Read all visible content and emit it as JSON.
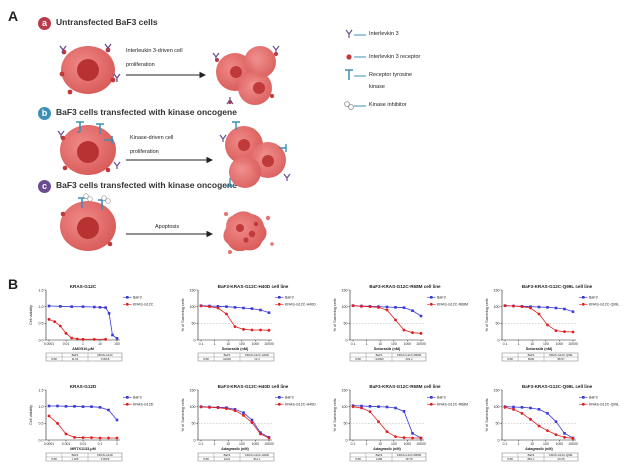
{
  "panel_a": {
    "letter": "A",
    "rows": [
      {
        "badge": "a",
        "badge_color": "#b83a4b",
        "title": "Untransfected BaF3 cells",
        "arrow_label_1": "Interleukin 3-driven cell",
        "arrow_label_2": "proliferation"
      },
      {
        "badge": "b",
        "badge_color": "#3d8fb5",
        "title": "BaF3 cells transfected with kinase oncogene",
        "arrow_label_1": "Kinase-driven cell",
        "arrow_label_2": "proliferation"
      },
      {
        "badge": "c",
        "badge_color": "#6a4c93",
        "title": "BaF3 cells transfected with kinase oncogene",
        "arrow_label_1": "Apoptosis",
        "arrow_label_2": ""
      }
    ],
    "legend": [
      {
        "label": "Interlevkin 3",
        "icon": "interleukin-3-icon"
      },
      {
        "label": "Interlevkin 3 receptor",
        "icon": "receptor-icon"
      },
      {
        "label": "Receptor tyrosine",
        "label2": "kinase",
        "icon": "tyrosine-kinase-icon"
      },
      {
        "label": "Kinase inhibitor",
        "icon": "kinase-inhibitor-icon"
      }
    ],
    "colors": {
      "cell": "#e8706e",
      "nucleus": "#c03a3a",
      "arrow": "#222222"
    }
  },
  "panel_b": {
    "letter": "B",
    "colors": {
      "series1": "#3a3ad8",
      "series2": "#e02020"
    },
    "chart_data": [
      {
        "type": "line",
        "title": "KRAS-G12C",
        "xlabel": "AMG510,μM",
        "ylabel": "Cell viability",
        "xticks": [
          "0.0001",
          "0.01",
          "1",
          "10",
          "100"
        ],
        "yticks": [
          "0.0",
          "0.5",
          "1.0",
          "1.5"
        ],
        "ylim": [
          0,
          1.5
        ],
        "series": [
          {
            "name": "BaF3",
            "x": [
              -4,
              -3,
              -2,
              -1,
              0,
              0.5,
              1,
              1.3,
              1.6,
              2
            ],
            "y": [
              1.02,
              1.01,
              1.0,
              1.0,
              0.99,
              0.98,
              0.97,
              0.8,
              0.15,
              0.05
            ]
          },
          {
            "name": "KRAS-G12C",
            "x": [
              -4,
              -3.5,
              -3,
              -2.5,
              -2,
              -1.5,
              -1,
              0,
              1
            ],
            "y": [
              0.62,
              0.55,
              0.42,
              0.2,
              0.06,
              0.03,
              0.02,
              0.02,
              0.02
            ]
          }
        ],
        "table": {
          "header": [
            "",
            "BaF3",
            "KRAS-G12C"
          ],
          "row": [
            "IC50",
            "11.61",
            "0.0018"
          ]
        }
      },
      {
        "type": "line",
        "title": "BaF3-KRAS-G12C-H40D cell line",
        "xlabel": "Sotorasib (nM)",
        "ylabel": "% of Surviving cells",
        "xticks": [
          "0.1",
          "1",
          "10",
          "100",
          "1000",
          "10000"
        ],
        "yticks": [
          "0",
          "50",
          "100",
          "150"
        ],
        "ylim": [
          0,
          150
        ],
        "series": [
          {
            "name": "BaF3",
            "x": [
              0,
              0.5,
              1,
              1.5,
              2,
              2.5,
              3,
              3.5,
              4
            ],
            "y": [
              103,
              102,
              101,
              100,
              98,
              96,
              94,
              90,
              82
            ]
          },
          {
            "name": "KRAS-G12C-H40D",
            "x": [
              0,
              0.5,
              1,
              1.5,
              2,
              2.5,
              3,
              3.5,
              4
            ],
            "y": [
              102,
              100,
              96,
              78,
              40,
              32,
              30,
              30,
              29
            ]
          }
        ],
        "table": {
          "header": [
            "",
            "BaF3",
            "KRAS-G12C-H40D"
          ],
          "row": [
            "IC50",
            "10000",
            "12.4"
          ]
        }
      },
      {
        "type": "line",
        "title": "BaF3-KRAS-G12C-R68M cell line",
        "xlabel": "Sotorasib (nM)",
        "ylabel": "% of Surviving cells",
        "xticks": [
          "0.1",
          "1",
          "10",
          "100",
          "1000",
          "10000"
        ],
        "yticks": [
          "0",
          "50",
          "100",
          "150"
        ],
        "ylim": [
          0,
          150
        ],
        "series": [
          {
            "name": "BaF3",
            "x": [
              0,
              0.5,
              1,
              1.5,
              2,
              2.5,
              3,
              3.5,
              4
            ],
            "y": [
              103,
              102,
              101,
              100,
              99,
              98,
              97,
              88,
              72
            ]
          },
          {
            "name": "KRAS-G12C-R68M",
            "x": [
              0,
              0.5,
              1,
              1.5,
              2,
              2.5,
              3,
              3.5,
              4
            ],
            "y": [
              103,
              101,
              100,
              98,
              90,
              60,
              30,
              22,
              20
            ]
          }
        ],
        "table": {
          "header": [
            "",
            "BaF3",
            "KRAS-G12C-R68M"
          ],
          "row": [
            "IC50",
            ">10000",
            "202.2"
          ]
        }
      },
      {
        "type": "line",
        "title": "BaF3-KRAS-G12C-Q99L cell line",
        "xlabel": "Sotorasib (nM)",
        "ylabel": "% of Surviving cells",
        "xticks": [
          "0.1",
          "1",
          "10",
          "100",
          "1000",
          "10000"
        ],
        "yticks": [
          "0",
          "50",
          "100",
          "150"
        ],
        "ylim": [
          0,
          150
        ],
        "series": [
          {
            "name": "BaF3",
            "x": [
              0,
              0.5,
              1,
              1.5,
              2,
              2.5,
              3,
              3.5,
              4
            ],
            "y": [
              103,
              102,
              101,
              100,
              99,
              98,
              96,
              93,
              85
            ]
          },
          {
            "name": "KRAS-G12C-Q99L",
            "x": [
              0,
              0.5,
              1,
              1.5,
              2,
              2.5,
              3,
              3.5,
              4
            ],
            "y": [
              103,
              102,
              100,
              96,
              78,
              45,
              28,
              25,
              24
            ]
          }
        ],
        "table": {
          "header": [
            "",
            "BaF3",
            "KRAS-G12C-Q99L"
          ],
          "row": [
            "IC50",
            "6630",
            "88.57"
          ]
        }
      },
      {
        "type": "line",
        "title": "KRAS-G12D",
        "xlabel": "MRTX1133,μM",
        "ylabel": "Cell viability",
        "xticks": [
          "0.0001",
          "0.001",
          "0.01",
          "0.1",
          "1"
        ],
        "yticks": [
          "0.0",
          "0.5",
          "1.0",
          "1.5"
        ],
        "ylim": [
          0,
          1.5
        ],
        "series": [
          {
            "name": "BaF3",
            "x": [
              -4,
              -3.5,
              -3,
              -2.5,
              -2,
              -1.5,
              -1,
              -0.5,
              0
            ],
            "y": [
              1.02,
              1.02,
              1.01,
              1.01,
              1.0,
              1.0,
              0.98,
              0.9,
              0.6
            ]
          },
          {
            "name": "KRAS-G12D",
            "x": [
              -4,
              -3.5,
              -3,
              -2.5,
              -2,
              -1.5,
              -1,
              -0.5,
              0
            ],
            "y": [
              0.72,
              0.5,
              0.18,
              0.08,
              0.07,
              0.07,
              0.06,
              0.06,
              0.06
            ]
          }
        ],
        "table": {
          "header": [
            "",
            "BaF3",
            "KRAS-G12D"
          ],
          "row": [
            "IC50",
            "1.025",
            "0.0003"
          ]
        }
      },
      {
        "type": "line",
        "title": "BaF3-KRAS-G12C-H40D cell line",
        "xlabel": "Adagrasib (nM)",
        "ylabel": "% of Surviving cells",
        "xticks": [
          "0.1",
          "1",
          "10",
          "100",
          "1000",
          "10000"
        ],
        "yticks": [
          "0",
          "50",
          "100",
          "150"
        ],
        "ylim": [
          0,
          150
        ],
        "series": [
          {
            "name": "BaF3",
            "x": [
              0,
              0.5,
              1,
              1.5,
              2,
              2.5,
              3,
              3.5,
              4
            ],
            "y": [
              100,
              99,
              98,
              97,
              92,
              82,
              60,
              22,
              8
            ]
          },
          {
            "name": "KRAS-G12C-H40D",
            "x": [
              0,
              0.5,
              1,
              1.5,
              2,
              2.5,
              3,
              3.5,
              4
            ],
            "y": [
              99,
              98,
              97,
              94,
              88,
              74,
              52,
              18,
              6
            ]
          }
        ],
        "table": {
          "header": [
            "",
            "BaF3",
            "KRAS-G12C-H40D"
          ],
          "row": [
            "IC50",
            "1024",
            "811.1"
          ]
        }
      },
      {
        "type": "line",
        "title": "BaF3-KRAS-G12C-R68M cell line",
        "xlabel": "Adagrasib (nM)",
        "ylabel": "% of Surviving cells",
        "xticks": [
          "0.1",
          "1",
          "10",
          "100",
          "1000",
          "10000"
        ],
        "yticks": [
          "0",
          "50",
          "100",
          "150"
        ],
        "ylim": [
          0,
          150
        ],
        "series": [
          {
            "name": "BaF3",
            "x": [
              0,
              0.5,
              1,
              1.5,
              2,
              2.5,
              3,
              3.5,
              4
            ],
            "y": [
              103,
              102,
              101,
              100,
              99,
              96,
              86,
              20,
              6
            ]
          },
          {
            "name": "KRAS-G12C-R68M",
            "x": [
              0,
              0.5,
              1,
              1.5,
              2,
              2.5,
              3,
              3.5,
              4
            ],
            "y": [
              100,
              96,
              85,
              55,
              25,
              10,
              7,
              6,
              6
            ]
          }
        ],
        "table": {
          "header": [
            "",
            "BaF3",
            "KRAS-G12C-R68M"
          ],
          "row": [
            "IC50",
            "1189",
            "18.78"
          ]
        }
      },
      {
        "type": "line",
        "title": "BaF3-KRAS-G12C-Q99L cell line",
        "xlabel": "Adagrasib (nM)",
        "ylabel": "% of Surviving cells",
        "xticks": [
          "0.1",
          "1",
          "10",
          "100",
          "1000",
          "10000"
        ],
        "yticks": [
          "0",
          "50",
          "100",
          "150"
        ],
        "ylim": [
          0,
          150
        ],
        "series": [
          {
            "name": "BaF3",
            "x": [
              0,
              0.5,
              1,
              1.5,
              2,
              2.5,
              3,
              3.5,
              4
            ],
            "y": [
              100,
              99,
              98,
              96,
              92,
              80,
              55,
              20,
              6
            ]
          },
          {
            "name": "KRAS-G12C-Q99L",
            "x": [
              0,
              0.5,
              1,
              1.5,
              2,
              2.5,
              3,
              3.5,
              4
            ],
            "y": [
              98,
              92,
              80,
              62,
              42,
              28,
              16,
              8,
              5
            ]
          }
        ],
        "table": {
          "header": [
            "",
            "BaF3",
            "KRAS-G12C-Q99L"
          ],
          "row": [
            "IC50",
            "881.1",
            "23.25"
          ]
        }
      }
    ]
  }
}
